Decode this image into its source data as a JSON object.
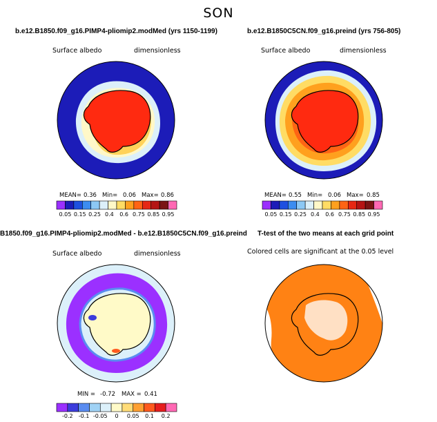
{
  "figure": {
    "title": "SON"
  },
  "panels": [
    {
      "title": "b.e12.B1850.f09_g16.PIMP4-pliomip2.modMed (yrs 1150-1199)",
      "field": "Surface albedo",
      "units": "dimensionless",
      "stats": {
        "mean_label": "MEAN=",
        "mean": "0.36",
        "min_label": "Min=",
        "min": "0.06",
        "max_label": "Max=",
        "max": "0.86"
      }
    },
    {
      "title": "b.e12.B1850C5CN.f09_g16.preind (yrs 756-805)",
      "field": "Surface albedo",
      "units": "dimensionless",
      "stats": {
        "mean_label": "MEAN=",
        "mean": "0.55",
        "min_label": "Min=",
        "min": "0.06",
        "max_label": "Max=",
        "max": "0.85"
      }
    },
    {
      "title": "B1850.f09_g16.PIMP4-pliomip2.modMed - b.e12.B1850C5CN.f09_g16.preind",
      "field": "Surface albedo",
      "units": "dimensionless",
      "stats": {
        "min_label": "MIN =",
        "min": "-0.72",
        "max_label": "MAX =",
        "max": "0.41"
      }
    },
    {
      "title": "T-test of the two means at each grid point",
      "note": "Colored cells are significant at the 0.05 level"
    }
  ],
  "colorbar_albedo": {
    "ticks": [
      "0.05",
      "0.15",
      "0.25",
      "0.4",
      "0.6",
      "0.75",
      "0.85",
      "0.95"
    ],
    "colors": [
      "#9b30ff",
      "#1c1cb8",
      "#1e50e0",
      "#3c8cf0",
      "#8cc8f5",
      "#dcf0fa",
      "#fff8c8",
      "#ffdc64",
      "#ffa01e",
      "#ff6414",
      "#e62814",
      "#b41414",
      "#7a1414",
      "#ff69b4"
    ]
  },
  "colorbar_diff": {
    "ticks": [
      "-0.2",
      "-0.1",
      "-0.05",
      "0",
      "0.05",
      "0.1",
      "0.2"
    ],
    "colors": [
      "#9b30ff",
      "#3c3cdc",
      "#5a8cf0",
      "#a0d2f5",
      "#dcf0fa",
      "#fffac8",
      "#ffdc78",
      "#ffa032",
      "#ff5a1e",
      "#e61e1e",
      "#ff69b4"
    ]
  },
  "palette": {
    "ocean_low": "#1c1cb8",
    "ice_high": "#ff2a10",
    "ice_mid": "#ffa01e",
    "shelf": "#ffd25a",
    "pale": "#fff8c8",
    "diff_neg": "#9b30ff",
    "ttest": "#ff8214"
  }
}
